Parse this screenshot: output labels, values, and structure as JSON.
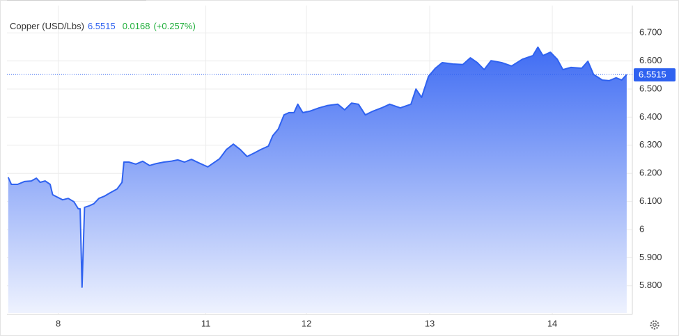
{
  "chart_data": {
    "type": "area",
    "title": "Copper (USD/Lbs)",
    "last_value": 6.5515,
    "change": 0.0168,
    "change_label": "(+0.257%)",
    "color": "#2f62f0",
    "x": [
      0.2,
      0.7,
      1.7,
      2.8,
      3.9,
      4.7,
      5.3,
      6.1,
      6.9,
      7.3,
      8.0,
      8.9,
      9.8,
      10.7,
      11.4,
      11.7,
      12.0,
      12.4,
      13.1,
      13.9,
      14.7,
      15.6,
      16.5,
      17.6,
      18.4,
      18.7,
      19.5,
      20.6,
      21.7,
      22.8,
      23.9,
      25.1,
      26.2,
      27.3,
      28.4,
      29.5,
      30.6,
      32.1,
      32.9,
      34.0,
      35.1,
      36.2,
      37.3,
      38.4,
      39.5,
      40.6,
      41.8,
      42.5,
      43.4,
      44.3,
      45.1,
      45.9,
      46.5,
      47.3,
      48.4,
      49.9,
      51.2,
      52.9,
      54.0,
      55.1,
      56.2,
      57.3,
      58.5,
      59.9,
      61.2,
      62.9,
      64.6,
      65.4,
      66.3,
      67.4,
      68.5,
      69.6,
      71.3,
      72.9,
      74.1,
      75.2,
      76.3,
      77.4,
      79.1,
      80.7,
      82.4,
      84.1,
      84.9,
      85.7,
      86.9,
      88.0,
      88.9,
      90.2,
      91.9,
      92.9,
      93.8,
      95.2,
      96.3,
      97.4,
      98.3,
      99.1
    ],
    "values": [
      6.186,
      6.161,
      6.161,
      6.171,
      6.173,
      6.183,
      6.168,
      6.173,
      6.161,
      6.124,
      6.116,
      6.106,
      6.111,
      6.099,
      6.074,
      6.074,
      5.795,
      6.079,
      6.084,
      6.092,
      6.111,
      6.119,
      6.131,
      6.144,
      6.168,
      6.24,
      6.24,
      6.233,
      6.243,
      6.228,
      6.235,
      6.24,
      6.243,
      6.248,
      6.24,
      6.25,
      6.238,
      6.223,
      6.235,
      6.252,
      6.285,
      6.304,
      6.285,
      6.26,
      6.272,
      6.285,
      6.297,
      6.334,
      6.358,
      6.408,
      6.416,
      6.416,
      6.446,
      6.416,
      6.421,
      6.433,
      6.441,
      6.446,
      6.426,
      6.45,
      6.446,
      6.408,
      6.421,
      6.433,
      6.446,
      6.433,
      6.446,
      6.5,
      6.47,
      6.545,
      6.574,
      6.594,
      6.589,
      6.587,
      6.611,
      6.594,
      6.569,
      6.601,
      6.594,
      6.582,
      6.606,
      6.619,
      6.649,
      6.619,
      6.631,
      6.606,
      6.569,
      6.577,
      6.574,
      6.599,
      6.552,
      6.532,
      6.53,
      6.54,
      6.532,
      6.5515
    ],
    "xlim": [
      0,
      100
    ],
    "xticks": [
      {
        "value": 8.2,
        "label": "8"
      },
      {
        "value": 31.8,
        "label": "11"
      },
      {
        "value": 47.9,
        "label": "12"
      },
      {
        "value": 67.6,
        "label": "13"
      },
      {
        "value": 87.2,
        "label": "14"
      }
    ],
    "ylim": [
      5.703,
      6.797
    ],
    "yticks": [
      {
        "value": 5.8,
        "label": "5.800"
      },
      {
        "value": 5.9,
        "label": "5.900"
      },
      6,
      {
        "value": 6.1,
        "label": "6.100"
      },
      {
        "value": 6.2,
        "label": "6.200"
      },
      {
        "value": 6.3,
        "label": "6.300"
      },
      {
        "value": 6.4,
        "label": "6.400"
      },
      {
        "value": 6.5,
        "label": "6.500"
      },
      {
        "value": 6.6,
        "label": "6.600"
      },
      {
        "value": 6.7,
        "label": "6.700"
      }
    ],
    "grid": true
  }
}
